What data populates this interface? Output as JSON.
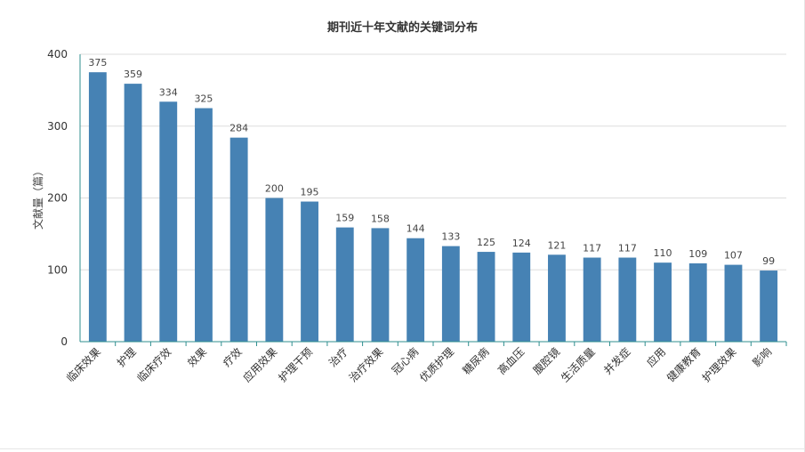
{
  "chart_data": {
    "type": "bar",
    "title": "期刊近十年文献的关键词分布",
    "xlabel": "",
    "ylabel": "文献量（篇）",
    "ylim": [
      0,
      400
    ],
    "yticks": [
      0,
      100,
      200,
      300,
      400
    ],
    "grid": true,
    "categories": [
      "临床效果",
      "护理",
      "临床疗效",
      "效果",
      "疗效",
      "应用效果",
      "护理干预",
      "治疗",
      "治疗效果",
      "冠心病",
      "优质护理",
      "糖尿病",
      "高血压",
      "腹腔镜",
      "生活质量",
      "并发症",
      "应用",
      "健康教育",
      "护理效果",
      "影响"
    ],
    "values": [
      375,
      359,
      334,
      325,
      284,
      200,
      195,
      159,
      158,
      144,
      133,
      125,
      124,
      121,
      117,
      117,
      110,
      109,
      107,
      99
    ],
    "colors": {
      "bar": "#4682b4",
      "axis": "#2f8f8f",
      "grid": "#dddddd",
      "text": "#333333",
      "label": "#444444"
    }
  }
}
